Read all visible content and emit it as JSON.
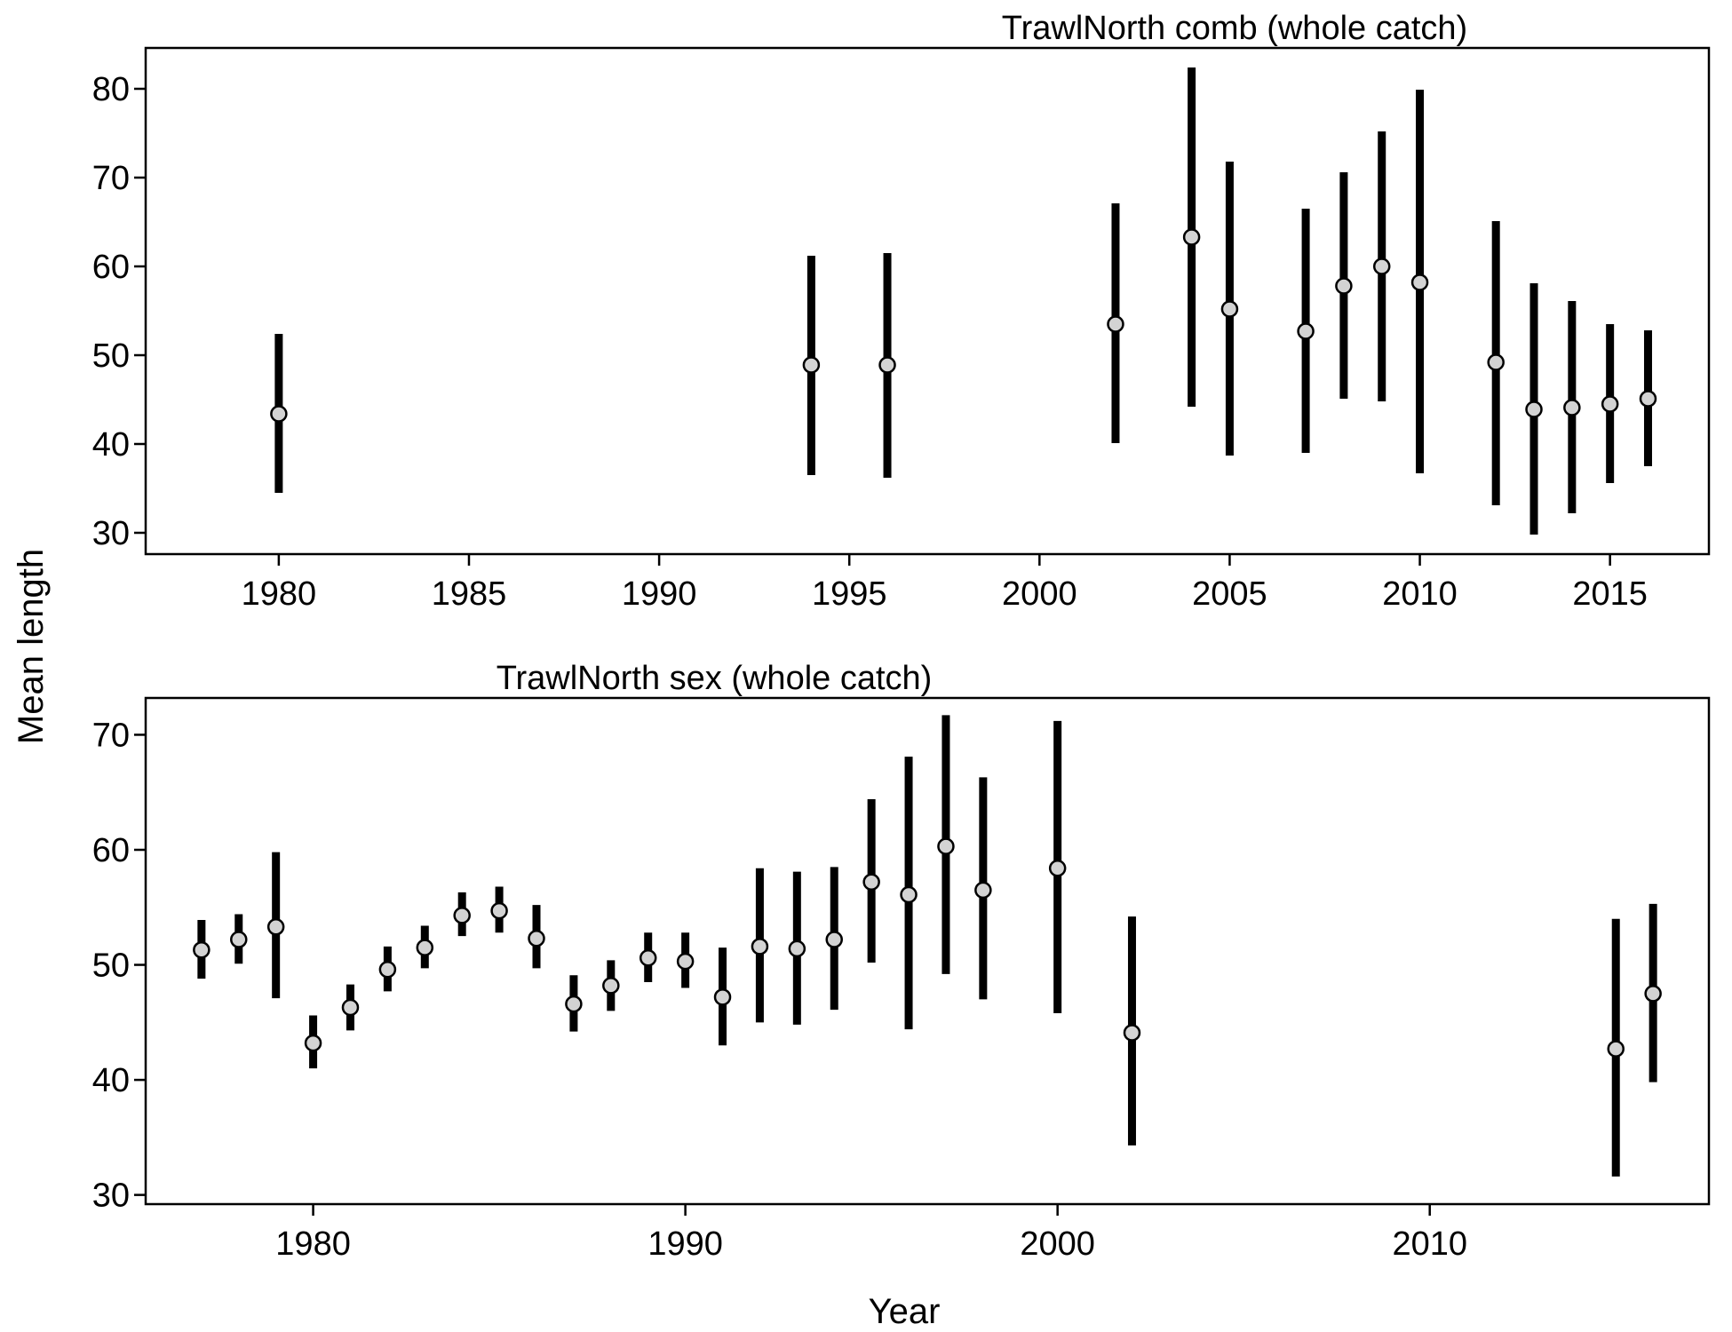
{
  "shared": {
    "xlabel": "Year",
    "ylabel": "Mean length"
  },
  "chart_data": [
    {
      "type": "scatter",
      "subtype": "point-with-interval",
      "title": "TrawlNorth comb (whole catch)",
      "xlim": [
        1976.5,
        2017.6
      ],
      "ylim": [
        27.6,
        84.6
      ],
      "xticks": [
        1980,
        1985,
        1990,
        1995,
        2000,
        2005,
        2010,
        2015
      ],
      "yticks": [
        30,
        40,
        50,
        60,
        70,
        80
      ],
      "grid": false,
      "points": [
        {
          "x": 1980,
          "y": 43.4,
          "lo": 34.5,
          "hi": 52.4
        },
        {
          "x": 1994,
          "y": 48.9,
          "lo": 36.5,
          "hi": 61.2
        },
        {
          "x": 1996,
          "y": 48.9,
          "lo": 36.2,
          "hi": 61.5
        },
        {
          "x": 2002,
          "y": 53.5,
          "lo": 40.1,
          "hi": 67.1
        },
        {
          "x": 2004,
          "y": 63.3,
          "lo": 44.2,
          "hi": 82.4
        },
        {
          "x": 2005,
          "y": 55.2,
          "lo": 38.7,
          "hi": 71.8
        },
        {
          "x": 2007,
          "y": 52.7,
          "lo": 39.0,
          "hi": 66.5
        },
        {
          "x": 2008,
          "y": 57.8,
          "lo": 45.1,
          "hi": 70.6
        },
        {
          "x": 2009,
          "y": 60.0,
          "lo": 44.8,
          "hi": 75.2
        },
        {
          "x": 2010,
          "y": 58.2,
          "lo": 36.7,
          "hi": 79.9
        },
        {
          "x": 2012,
          "y": 49.2,
          "lo": 33.1,
          "hi": 65.1
        },
        {
          "x": 2013,
          "y": 43.9,
          "lo": 29.8,
          "hi": 58.1
        },
        {
          "x": 2014,
          "y": 44.1,
          "lo": 32.2,
          "hi": 56.1
        },
        {
          "x": 2015,
          "y": 44.5,
          "lo": 35.6,
          "hi": 53.5
        },
        {
          "x": 2016,
          "y": 45.1,
          "lo": 37.5,
          "hi": 52.8
        }
      ]
    },
    {
      "type": "scatter",
      "subtype": "point-with-interval",
      "title": "TrawlNorth sex (whole catch)",
      "xlim": [
        1975.5,
        2017.5
      ],
      "ylim": [
        29.2,
        73.2
      ],
      "xticks": [
        1980,
        1990,
        2000,
        2010
      ],
      "yticks": [
        30,
        40,
        50,
        60,
        70
      ],
      "grid": false,
      "points": [
        {
          "x": 1977,
          "y": 51.3,
          "lo": 48.8,
          "hi": 53.9
        },
        {
          "x": 1978,
          "y": 52.2,
          "lo": 50.1,
          "hi": 54.4
        },
        {
          "x": 1979,
          "y": 53.3,
          "lo": 47.1,
          "hi": 59.8
        },
        {
          "x": 1980,
          "y": 43.2,
          "lo": 41.0,
          "hi": 45.6
        },
        {
          "x": 1981,
          "y": 46.3,
          "lo": 44.3,
          "hi": 48.3
        },
        {
          "x": 1982,
          "y": 49.6,
          "lo": 47.7,
          "hi": 51.6
        },
        {
          "x": 1983,
          "y": 51.5,
          "lo": 49.7,
          "hi": 53.4
        },
        {
          "x": 1984,
          "y": 54.3,
          "lo": 52.5,
          "hi": 56.3
        },
        {
          "x": 1985,
          "y": 54.7,
          "lo": 52.8,
          "hi": 56.8
        },
        {
          "x": 1986,
          "y": 52.3,
          "lo": 49.7,
          "hi": 55.2
        },
        {
          "x": 1987,
          "y": 46.6,
          "lo": 44.2,
          "hi": 49.1
        },
        {
          "x": 1988,
          "y": 48.2,
          "lo": 46.0,
          "hi": 50.4
        },
        {
          "x": 1989,
          "y": 50.6,
          "lo": 48.5,
          "hi": 52.8
        },
        {
          "x": 1990,
          "y": 50.3,
          "lo": 48.0,
          "hi": 52.8
        },
        {
          "x": 1991,
          "y": 47.2,
          "lo": 43.0,
          "hi": 51.5
        },
        {
          "x": 1992,
          "y": 51.6,
          "lo": 45.0,
          "hi": 58.4
        },
        {
          "x": 1993,
          "y": 51.4,
          "lo": 44.8,
          "hi": 58.1
        },
        {
          "x": 1994,
          "y": 52.2,
          "lo": 46.1,
          "hi": 58.5
        },
        {
          "x": 1995,
          "y": 57.2,
          "lo": 50.2,
          "hi": 64.4
        },
        {
          "x": 1996,
          "y": 56.1,
          "lo": 44.4,
          "hi": 68.1
        },
        {
          "x": 1997,
          "y": 60.3,
          "lo": 49.2,
          "hi": 71.7
        },
        {
          "x": 1998,
          "y": 56.5,
          "lo": 47.0,
          "hi": 66.3
        },
        {
          "x": 2000,
          "y": 58.4,
          "lo": 45.8,
          "hi": 71.2
        },
        {
          "x": 2002,
          "y": 44.1,
          "lo": 34.3,
          "hi": 54.2
        },
        {
          "x": 2015,
          "y": 42.7,
          "lo": 31.6,
          "hi": 54.0
        },
        {
          "x": 2016,
          "y": 47.5,
          "lo": 39.8,
          "hi": 55.3
        }
      ]
    }
  ]
}
